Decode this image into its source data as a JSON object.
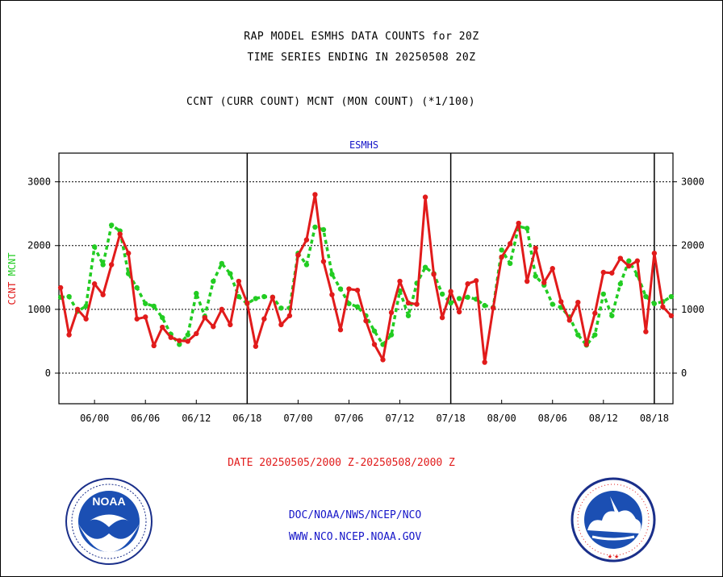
{
  "header": {
    "title1": "RAP MODEL ESMHS DATA COUNTS for 20Z",
    "title2": "TIME SERIES ENDING IN 20250508 20Z",
    "subtitle": "CCNT (CURR COUNT) MCNT (MON COUNT) (*1/100)"
  },
  "footer": {
    "line1": "DOC/NOAA/NWS/NCEP/NCO",
    "line2": "WWW.NCO.NCEP.NOAA.GOV"
  },
  "logos": {
    "noaa_text": "NOAA"
  },
  "chart_data": {
    "type": "line",
    "panel_label": "ESMHS",
    "xlabel": "DATE 20250505/2000 Z-20250508/2000 Z",
    "ylim": [
      -480,
      3450
    ],
    "yticks": [
      0,
      1000,
      2000,
      3000
    ],
    "grid": true,
    "x_tick_labels": [
      "06/00",
      "06/06",
      "06/12",
      "06/18",
      "07/00",
      "07/06",
      "07/12",
      "07/18",
      "08/00",
      "08/06",
      "08/12",
      "08/18"
    ],
    "x_tick_hours": [
      4,
      10,
      16,
      22,
      28,
      34,
      40,
      46,
      52,
      58,
      64,
      70
    ],
    "x_range_hours": [
      -0.2,
      72.2
    ],
    "day_dividers_hours": [
      22,
      46,
      70
    ],
    "series": [
      {
        "name": "CCNT",
        "color": "#e11b1b",
        "x": [
          0,
          1,
          2,
          3,
          4,
          5,
          6,
          7,
          8,
          9,
          10,
          11,
          12,
          13,
          14,
          15,
          16,
          17,
          18,
          19,
          20,
          21,
          22,
          23,
          24,
          25,
          26,
          27,
          28,
          29,
          30,
          31,
          32,
          33,
          34,
          35,
          36,
          37,
          38,
          39,
          40,
          41,
          42,
          43,
          44,
          45,
          46,
          47,
          48,
          49,
          50,
          51,
          52,
          53,
          54,
          55,
          56,
          57,
          58,
          59,
          60,
          61,
          62,
          63,
          64,
          65,
          66,
          67,
          68,
          69,
          70,
          71,
          72
        ],
        "values": [
          1340,
          600,
          1000,
          850,
          1400,
          1230,
          1700,
          2180,
          1880,
          850,
          880,
          430,
          720,
          560,
          510,
          500,
          620,
          870,
          730,
          1000,
          760,
          1440,
          1100,
          420,
          850,
          1190,
          760,
          900,
          1850,
          2090,
          2800,
          1750,
          1230,
          680,
          1320,
          1300,
          820,
          450,
          210,
          950,
          1440,
          1100,
          1080,
          2760,
          1550,
          870,
          1280,
          960,
          1400,
          1450,
          170,
          1020,
          1820,
          2030,
          2350,
          1440,
          1960,
          1420,
          1640,
          1120,
          830,
          1110,
          450,
          940,
          1580,
          1570,
          1800,
          1680,
          1760,
          650,
          1880,
          1040,
          900
        ]
      },
      {
        "name": "MCNT",
        "color": "#22cc22",
        "x": [
          0,
          1,
          2,
          3,
          4,
          5,
          6,
          7,
          8,
          9,
          10,
          11,
          12,
          13,
          14,
          15,
          16,
          17,
          18,
          19,
          20,
          21,
          22,
          23,
          24,
          25,
          26,
          27,
          28,
          29,
          30,
          31,
          32,
          33,
          34,
          35,
          36,
          37,
          38,
          39,
          40,
          41,
          42,
          43,
          44,
          45,
          46,
          47,
          48,
          49,
          50,
          51,
          52,
          53,
          54,
          55,
          56,
          57,
          58,
          59,
          60,
          61,
          62,
          63,
          64,
          65,
          66,
          67,
          68,
          69,
          70,
          71,
          72
        ],
        "values": [
          1190,
          1200,
          970,
          1050,
          1980,
          1700,
          2320,
          2230,
          1560,
          1340,
          1090,
          1050,
          870,
          610,
          450,
          600,
          1250,
          890,
          1440,
          1720,
          1560,
          1200,
          1090,
          1170,
          1200,
          1190,
          1020,
          1020,
          1880,
          1700,
          2290,
          2250,
          1550,
          1320,
          1090,
          1040,
          900,
          660,
          450,
          600,
          1290,
          900,
          1410,
          1660,
          1560,
          1240,
          1100,
          1170,
          1190,
          1160,
          1060,
          1030,
          1930,
          1720,
          2300,
          2270,
          1520,
          1380,
          1080,
          1030,
          880,
          600,
          440,
          600,
          1240,
          900,
          1400,
          1760,
          1540,
          1200,
          1090,
          1120,
          1200
        ]
      }
    ]
  }
}
